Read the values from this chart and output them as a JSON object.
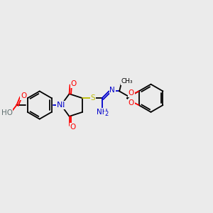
{
  "bg": "#ebebeb",
  "C": "#000000",
  "N": "#0000cc",
  "O": "#ff0000",
  "S": "#bbbb00",
  "HO": "#607070",
  "lw": 1.3,
  "fs": 7.5
}
